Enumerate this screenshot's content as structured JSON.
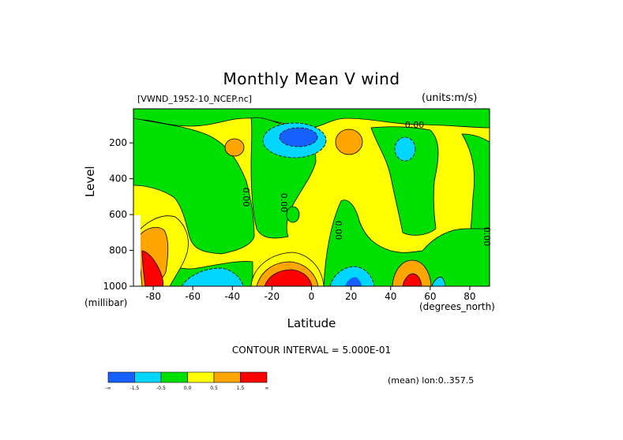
{
  "title": "Monthly Mean V wind",
  "dataset": "[VWND_1952-10_NCEP.nc]",
  "units": "(units:m/s)",
  "y_unit": "(millibar)",
  "x_unit": "(degrees_north)",
  "xlabel": "Latitude",
  "ylabel": "Level",
  "contour_interval": "CONTOUR INTERVAL = 5.000E-01",
  "mean_note": "(mean) lon:0..357.5",
  "colorbar": {
    "colors": [
      "#1560ff",
      "#00d6ff",
      "#00e000",
      "#ffff00",
      "#ffa500",
      "#ff0000"
    ],
    "labels": [
      "-∞",
      "-1.5",
      "-0.5",
      "0.0",
      "0.5",
      "1.5",
      "∞"
    ]
  },
  "chart_data": {
    "type": "heatmap",
    "title": "Monthly Mean V wind",
    "xlabel": "Latitude",
    "ylabel": "Level",
    "x_ticks": [
      -80,
      -60,
      -40,
      -20,
      0,
      20,
      40,
      60,
      80
    ],
    "y_ticks": [
      200,
      400,
      600,
      800,
      1000
    ],
    "xlim": [
      -90,
      90
    ],
    "ylim": [
      1000,
      10
    ],
    "contour_interval": 0.5,
    "levels": [
      -1.5,
      -1.0,
      -0.5,
      0.0,
      0.5,
      1.0,
      1.5
    ],
    "contour_labels": [
      "0.00",
      "0.00",
      "0.00",
      "0.00",
      "0.00",
      "0.00"
    ],
    "fill_colors": [
      "#1560ff",
      "#00d6ff",
      "#00e000",
      "#ffff00",
      "#ffa500",
      "#ff0000"
    ],
    "grid": false,
    "legend": "bottom colorbar"
  }
}
